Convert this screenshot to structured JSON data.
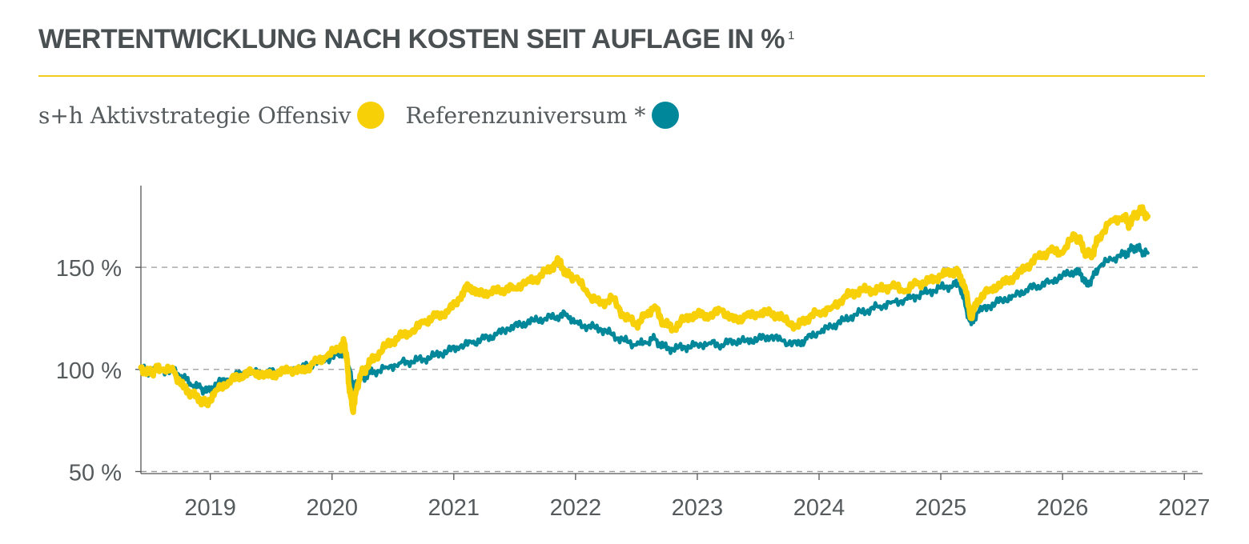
{
  "header": {
    "title": "WERTENTWICKLUNG NACH KOSTEN SEIT AUFLAGE IN %",
    "footnote_marker": "1"
  },
  "legend": {
    "items": [
      {
        "label": "s+h Aktivstrategie Offensiv",
        "color": "#f7d008"
      },
      {
        "label": "Referenzuniversum *",
        "color": "#00879a"
      }
    ]
  },
  "chart_data": {
    "type": "line",
    "title": "WERTENTWICKLUNG NACH KOSTEN SEIT AUFLAGE IN %",
    "xlabel": "",
    "ylabel": "",
    "x_ticks": [
      "2019",
      "2020",
      "2021",
      "2022",
      "2023",
      "2024",
      "2025",
      "2026",
      "2027"
    ],
    "y_ticks": [
      "50 %",
      "100 %",
      "150 %"
    ],
    "xlim": [
      2018.43,
      2027.15
    ],
    "ylim": [
      49,
      190
    ],
    "grid": "horizontal dashed",
    "legend_position": "top-left",
    "series": [
      {
        "name": "s+h Aktivstrategie Offensiv",
        "color": "#f7d008",
        "x": [
          2018.43,
          2018.5,
          2018.55,
          2018.6,
          2018.7,
          2018.78,
          2018.85,
          2018.92,
          2018.97,
          2019.05,
          2019.15,
          2019.25,
          2019.35,
          2019.45,
          2019.55,
          2019.65,
          2019.75,
          2019.85,
          2019.95,
          2020.05,
          2020.1,
          2020.12,
          2020.14,
          2020.17,
          2020.2,
          2020.23,
          2020.28,
          2020.35,
          2020.45,
          2020.55,
          2020.65,
          2020.75,
          2020.85,
          2020.95,
          2021.05,
          2021.12,
          2021.2,
          2021.3,
          2021.4,
          2021.5,
          2021.6,
          2021.7,
          2021.8,
          2021.87,
          2021.93,
          2022.0,
          2022.1,
          2022.2,
          2022.3,
          2022.4,
          2022.5,
          2022.58,
          2022.65,
          2022.72,
          2022.8,
          2022.9,
          2023.0,
          2023.1,
          2023.2,
          2023.3,
          2023.4,
          2023.5,
          2023.6,
          2023.7,
          2023.82,
          2023.9,
          2024.0,
          2024.1,
          2024.2,
          2024.3,
          2024.4,
          2024.5,
          2024.6,
          2024.7,
          2024.8,
          2024.9,
          2025.0,
          2025.1,
          2025.15,
          2025.2,
          2025.25,
          2025.3,
          2025.4,
          2025.5,
          2025.6,
          2025.7,
          2025.8,
          2025.9,
          2026.0,
          2026.1,
          2026.15,
          2026.2,
          2026.25,
          2026.3,
          2026.4,
          2026.5,
          2026.55,
          2026.6,
          2026.65,
          2026.7
        ],
        "values": [
          101,
          98,
          100,
          100,
          99,
          91,
          88,
          85,
          83,
          90,
          94,
          97,
          99,
          97,
          98,
          100,
          99,
          103,
          106,
          110,
          113,
          106,
          92,
          80,
          90,
          97,
          101,
          106,
          112,
          116,
          118,
          123,
          126,
          128,
          135,
          141,
          137,
          138,
          139,
          140,
          143,
          145,
          150,
          153,
          146,
          145,
          137,
          132,
          135,
          126,
          122,
          127,
          131,
          123,
          120,
          125,
          127,
          126,
          129,
          124,
          126,
          127,
          128,
          125,
          121,
          125,
          128,
          130,
          135,
          138,
          139,
          139,
          141,
          138,
          142,
          143,
          146,
          148,
          147,
          140,
          125,
          134,
          139,
          142,
          145,
          150,
          155,
          158,
          157,
          166,
          162,
          156,
          157,
          165,
          173,
          175,
          171,
          176,
          178,
          175
        ]
      },
      {
        "name": "Referenzuniversum *",
        "color": "#00879a",
        "x": [
          2018.43,
          2018.5,
          2018.6,
          2018.7,
          2018.78,
          2018.85,
          2018.92,
          2018.97,
          2019.05,
          2019.15,
          2019.25,
          2019.35,
          2019.45,
          2019.55,
          2019.65,
          2019.75,
          2019.85,
          2019.95,
          2020.05,
          2020.1,
          2020.14,
          2020.17,
          2020.2,
          2020.23,
          2020.28,
          2020.35,
          2020.45,
          2020.55,
          2020.65,
          2020.75,
          2020.85,
          2020.95,
          2021.05,
          2021.15,
          2021.25,
          2021.35,
          2021.45,
          2021.55,
          2021.65,
          2021.75,
          2021.85,
          2021.93,
          2022.0,
          2022.1,
          2022.2,
          2022.3,
          2022.4,
          2022.5,
          2022.58,
          2022.65,
          2022.72,
          2022.8,
          2022.9,
          2023.0,
          2023.1,
          2023.2,
          2023.3,
          2023.4,
          2023.5,
          2023.6,
          2023.7,
          2023.82,
          2023.9,
          2024.0,
          2024.1,
          2024.2,
          2024.3,
          2024.4,
          2024.5,
          2024.6,
          2024.7,
          2024.8,
          2024.9,
          2025.0,
          2025.1,
          2025.15,
          2025.2,
          2025.25,
          2025.3,
          2025.4,
          2025.5,
          2025.6,
          2025.7,
          2025.8,
          2025.9,
          2026.0,
          2026.1,
          2026.15,
          2026.2,
          2026.25,
          2026.3,
          2026.4,
          2026.5,
          2026.55,
          2026.6,
          2026.65,
          2026.7
        ],
        "values": [
          100,
          99,
          100,
          99,
          96,
          92,
          91,
          89,
          93,
          95,
          98,
          99,
          98,
          99,
          100,
          101,
          103,
          105,
          107,
          109,
          101,
          92,
          92,
          95,
          97,
          99,
          101,
          103,
          104,
          105,
          107,
          109,
          111,
          113,
          115,
          117,
          120,
          122,
          124,
          125,
          126,
          127,
          123,
          121,
          120,
          117,
          114,
          112,
          113,
          115,
          111,
          110,
          111,
          112,
          113,
          112,
          114,
          114,
          115,
          116,
          114,
          112,
          115,
          118,
          121,
          124,
          127,
          129,
          131,
          133,
          134,
          136,
          138,
          140,
          141,
          142,
          131,
          122,
          128,
          131,
          134,
          136,
          139,
          141,
          143,
          146,
          148,
          147,
          141,
          145,
          150,
          154,
          156,
          158,
          160,
          158,
          157
        ]
      }
    ]
  }
}
